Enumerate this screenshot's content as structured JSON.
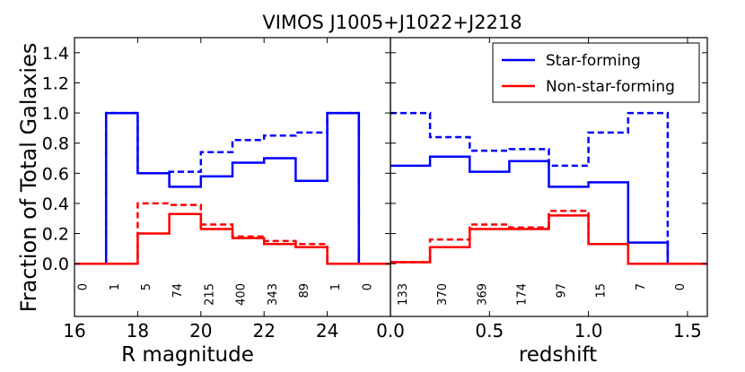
{
  "chart_data": {
    "type": "step",
    "title": "VIMOS J1005+J1022+J2218",
    "ylabel": "Fraction of Total Galaxies",
    "ylim": [
      -0.35,
      1.5
    ],
    "yticks": [
      "0.0",
      "0.2",
      "0.4",
      "0.6",
      "0.8",
      "1.0",
      "1.2",
      "1.4"
    ],
    "colors": {
      "star_forming": "#0000ff",
      "non_star_forming": "#ff0000"
    },
    "legend": {
      "location": "top-right",
      "entries": [
        {
          "label": "Star-forming",
          "color": "#0000ff"
        },
        {
          "label": "Non-star-forming",
          "color": "#ff0000"
        }
      ]
    },
    "panels": [
      {
        "name": "left",
        "xlabel": "R magnitude",
        "xlim": [
          16,
          26
        ],
        "xticks": [
          "16",
          "18",
          "20",
          "22",
          "24"
        ],
        "bin_edges": [
          16,
          17,
          18,
          19,
          20,
          21,
          22,
          23,
          24,
          25,
          26
        ],
        "counts": [
          "0",
          "1",
          "5",
          "74",
          "215",
          "400",
          "343",
          "89",
          "1",
          "0"
        ],
        "series": [
          {
            "name": "Star-forming",
            "style": "solid",
            "color": "#0000ff",
            "values": [
              0,
              1.0,
              0.6,
              0.51,
              0.58,
              0.67,
              0.7,
              0.55,
              1.0,
              0
            ]
          },
          {
            "name": "Star-forming (dashed)",
            "style": "dashed",
            "color": "#0000ff",
            "values": [
              0,
              1.0,
              0.6,
              0.61,
              0.74,
              0.82,
              0.85,
              0.87,
              1.0,
              0
            ]
          },
          {
            "name": "Non-star-forming",
            "style": "solid",
            "color": "#ff0000",
            "values": [
              0,
              0,
              0.2,
              0.33,
              0.23,
              0.17,
              0.13,
              0.11,
              0,
              0
            ]
          },
          {
            "name": "Non-star-forming (dashed)",
            "style": "dashed",
            "color": "#ff0000",
            "values": [
              0,
              0,
              0.4,
              0.39,
              0.26,
              0.18,
              0.15,
              0.13,
              0,
              0
            ]
          }
        ]
      },
      {
        "name": "right",
        "xlabel": "redshift",
        "xlim": [
          0.0,
          1.6
        ],
        "xticks": [
          "0.0",
          "0.5",
          "1.0",
          "1.5"
        ],
        "bin_edges": [
          0.0,
          0.2,
          0.4,
          0.6,
          0.8,
          1.0,
          1.2,
          1.4,
          1.6
        ],
        "counts": [
          "133",
          "370",
          "369",
          "174",
          "97",
          "15",
          "7",
          "0"
        ],
        "series": [
          {
            "name": "Star-forming",
            "style": "solid",
            "color": "#0000ff",
            "values": [
              0.65,
              0.71,
              0.61,
              0.68,
              0.51,
              0.54,
              0.14,
              0
            ]
          },
          {
            "name": "Star-forming (dashed)",
            "style": "dashed",
            "color": "#0000ff",
            "values": [
              1.0,
              0.84,
              0.75,
              0.76,
              0.65,
              0.87,
              1.0,
              0
            ]
          },
          {
            "name": "Non-star-forming",
            "style": "solid",
            "color": "#ff0000",
            "values": [
              0.01,
              0.11,
              0.23,
              0.23,
              0.32,
              0.13,
              0,
              0
            ]
          },
          {
            "name": "Non-star-forming (dashed)",
            "style": "dashed",
            "color": "#ff0000",
            "values": [
              0.01,
              0.16,
              0.26,
              0.24,
              0.35,
              0.13,
              0,
              0
            ]
          }
        ]
      }
    ]
  }
}
